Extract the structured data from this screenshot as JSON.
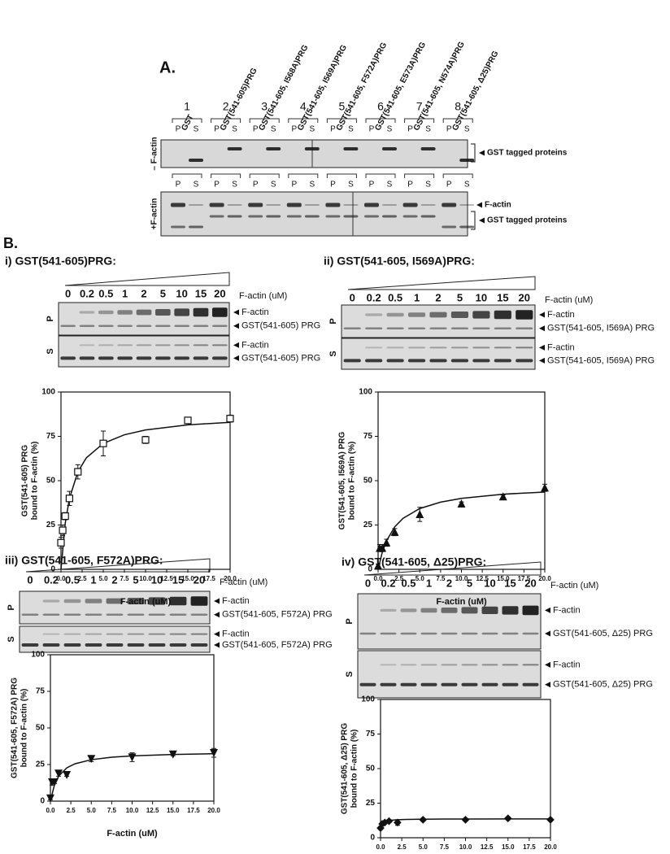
{
  "panel_a": {
    "label": "A.",
    "lanes": [
      {
        "number": "1",
        "name": "GST"
      },
      {
        "number": "2",
        "name": "GST(541-605)PRG"
      },
      {
        "number": "3",
        "name": "GST(541-605, I568A)PRG"
      },
      {
        "number": "4",
        "name": "GST(541-605, I569A)PRG"
      },
      {
        "number": "5",
        "name": "GST(541-605, F572A)PRG"
      },
      {
        "number": "6",
        "name": "GST(541-605, E573A)PRG"
      },
      {
        "number": "7",
        "name": "GST(541-605, N574A)PRG"
      },
      {
        "number": "8",
        "name": "GST(541-605, Δ25)PRG"
      }
    ],
    "lane_sub": [
      "P",
      "S"
    ],
    "rows": [
      {
        "condition": "– F-actin",
        "bands": [
          "GST tagged proteins"
        ]
      },
      {
        "condition": "+F-actin",
        "bands": [
          "F-actin",
          "GST tagged proteins"
        ]
      }
    ]
  },
  "panel_b": {
    "label": "B.",
    "subpanels": [
      {
        "title": "i) GST(541-605)PRG:",
        "concentrations": [
          "0",
          "0.2",
          "0.5",
          "1",
          "2",
          "5",
          "10",
          "15",
          "20"
        ],
        "conc_label": "F-actin (uM)",
        "rows": [
          {
            "label": "P",
            "bands": [
              "F-actin",
              "GST(541-605) PRG"
            ]
          },
          {
            "label": "S",
            "bands": [
              "F-actin",
              "GST(541-605) PRG"
            ]
          }
        ]
      },
      {
        "title": "ii) GST(541-605, I569A)PRG:",
        "concentrations": [
          "0",
          "0.2",
          "0.5",
          "1",
          "2",
          "5",
          "10",
          "15",
          "20"
        ],
        "conc_label": "F-actin (uM)",
        "rows": [
          {
            "label": "P",
            "bands": [
              "F-actin",
              "GST(541-605, I569A) PRG"
            ]
          },
          {
            "label": "S",
            "bands": [
              "F-actin",
              "GST(541-605, I569A) PRG"
            ]
          }
        ]
      },
      {
        "title": "iii) GST(541-605, F572A)PRG:",
        "concentrations": [
          "0",
          "0.2",
          "0.5",
          "1",
          "2",
          "5",
          "10",
          "15",
          "20"
        ],
        "conc_label": "F-actin (uM)",
        "rows": [
          {
            "label": "P",
            "bands": [
              "F-actin",
              "GST(541-605, F572A) PRG"
            ]
          },
          {
            "label": "S",
            "bands": [
              "F-actin",
              "GST(541-605, F572A) PRG"
            ]
          }
        ]
      },
      {
        "title": "iv) GST(541-605, Δ25)PRG:",
        "concentrations": [
          "0",
          "0.2",
          "0.5",
          "1",
          "2",
          "5",
          "10",
          "15",
          "20"
        ],
        "conc_label": "F-actin (uM)",
        "rows": [
          {
            "label": "P",
            "bands": [
              "F-actin",
              "GST(541-605, Δ25) PRG"
            ]
          },
          {
            "label": "S",
            "bands": [
              "F-actin",
              "GST(541-605, Δ25) PRG"
            ]
          }
        ]
      }
    ]
  },
  "chart_data": [
    {
      "type": "scatter",
      "xlabel": "F-actin (uM)",
      "ylabel": [
        "GST(541-605) PRG",
        "bound to F-actin (%)"
      ],
      "x": [
        0,
        0.2,
        0.5,
        1,
        2,
        5,
        10,
        15,
        20
      ],
      "values": [
        15,
        22,
        30,
        40,
        55,
        71,
        73,
        84,
        85
      ],
      "errors": [
        3,
        3,
        2,
        4,
        4,
        7,
        2,
        1,
        2
      ],
      "fit": {
        "x": [
          0,
          0.5,
          1,
          2,
          3,
          5,
          7.5,
          10,
          15,
          20
        ],
        "y": [
          0,
          25.9,
          40,
          55,
          62.9,
          71,
          75.9,
          78.6,
          81.5,
          82.9
        ]
      },
      "marker": "square",
      "filled": false,
      "color": "#111111",
      "xlim": [
        0,
        20
      ],
      "xticks": [
        {
          "value": 0,
          "label": "0.0"
        },
        {
          "value": 2.5,
          "label": "2.5"
        },
        {
          "value": 5,
          "label": "5.0"
        },
        {
          "value": 7.5,
          "label": "7.5"
        },
        {
          "value": 10,
          "label": "10.0"
        },
        {
          "value": 12.5,
          "label": "12.5"
        },
        {
          "value": 15,
          "label": "15.0"
        },
        {
          "value": 17.5,
          "label": "17.5"
        },
        {
          "value": 20,
          "label": "20.0"
        }
      ],
      "ylim": [
        0,
        100
      ],
      "yticks": [
        0,
        25,
        50,
        75,
        100
      ]
    },
    {
      "type": "scatter",
      "xlabel": "F-actin (uM)",
      "ylabel": [
        "GST(541-605, I569A) PRG",
        "bound to F-actin (%)"
      ],
      "x": [
        0,
        0.2,
        0.5,
        1,
        2,
        5,
        10,
        15,
        20
      ],
      "values": [
        2,
        12,
        12,
        15,
        21,
        31,
        37,
        41,
        46
      ],
      "errors": [
        1,
        2,
        2,
        2,
        2,
        4,
        1,
        1,
        2
      ],
      "fit": {
        "x": [
          0,
          0.5,
          1,
          2,
          3,
          5,
          7.5,
          10,
          15,
          20
        ],
        "y": [
          0,
          9.6,
          16,
          24,
          28.8,
          34.3,
          37.9,
          40,
          42.4,
          43.6
        ]
      },
      "marker": "triangle-up",
      "filled": true,
      "color": "#111111",
      "xlim": [
        0,
        20
      ],
      "xticks": [
        {
          "value": 0,
          "label": "0.0"
        },
        {
          "value": 2.5,
          "label": "2.5"
        },
        {
          "value": 5,
          "label": "5.0"
        },
        {
          "value": 7.5,
          "label": "7.5"
        },
        {
          "value": 10,
          "label": "10.0"
        },
        {
          "value": 12.5,
          "label": "12.5"
        },
        {
          "value": 15,
          "label": "15.0"
        },
        {
          "value": 17.5,
          "label": "17.5"
        },
        {
          "value": 20,
          "label": "20.0"
        }
      ],
      "ylim": [
        0,
        100
      ],
      "yticks": [
        0,
        25,
        50,
        75,
        100
      ]
    },
    {
      "type": "scatter",
      "xlabel": "F-actin (uM)",
      "ylabel": [
        "GST(541-605, F572A) PRG",
        "bound to F-actin (%)"
      ],
      "x": [
        0,
        0.2,
        0.5,
        1,
        2,
        5,
        10,
        15,
        20
      ],
      "values": [
        2,
        13,
        13,
        19,
        18,
        29,
        30,
        32,
        33
      ],
      "errors": [
        1,
        2,
        1,
        2,
        1,
        2,
        3,
        1,
        3
      ],
      "fit": {
        "x": [
          0,
          0.5,
          1,
          2,
          3,
          5,
          7.5,
          10,
          15,
          20
        ],
        "y": [
          0,
          11.3,
          17,
          22.7,
          25.5,
          28.3,
          30,
          30.9,
          31.9,
          32.4
        ]
      },
      "marker": "triangle-down",
      "filled": true,
      "color": "#111111",
      "xlim": [
        0,
        20
      ],
      "xticks": [
        {
          "value": 0,
          "label": "0.0"
        },
        {
          "value": 2.5,
          "label": "2.5"
        },
        {
          "value": 5,
          "label": "5.0"
        },
        {
          "value": 7.5,
          "label": "7.5"
        },
        {
          "value": 10,
          "label": "10.0"
        },
        {
          "value": 12.5,
          "label": "12.5"
        },
        {
          "value": 15,
          "label": "15.0"
        },
        {
          "value": 17.5,
          "label": "17.5"
        },
        {
          "value": 20,
          "label": "20.0"
        }
      ],
      "ylim": [
        0,
        100
      ],
      "yticks": [
        0,
        25,
        50,
        75,
        100
      ]
    },
    {
      "type": "scatter",
      "xlabel": "F-actin (uM)",
      "ylabel": [
        "GST(541-605, Δ25) PRG",
        "bound to F-actin (%)"
      ],
      "x": [
        0,
        0.2,
        0.5,
        1,
        2,
        5,
        10,
        15,
        20
      ],
      "values": [
        7,
        10,
        11,
        12,
        11,
        13,
        13,
        14,
        13
      ],
      "errors": [
        1,
        1,
        1,
        1,
        2,
        1,
        1,
        1,
        1
      ],
      "fit": {
        "x": [
          0,
          0.5,
          1,
          2,
          3,
          5,
          7.5,
          10,
          15,
          20
        ],
        "y": [
          7,
          11.5,
          12.5,
          13,
          13.2,
          13.4,
          13.5,
          13.5,
          13.6,
          13.6
        ]
      },
      "marker": "diamond",
      "filled": true,
      "color": "#111111",
      "xlim": [
        0,
        20
      ],
      "xticks": [
        {
          "value": 0,
          "label": "0.0"
        },
        {
          "value": 2.5,
          "label": "2.5"
        },
        {
          "value": 5,
          "label": "5.0"
        },
        {
          "value": 7.5,
          "label": "7.5"
        },
        {
          "value": 10,
          "label": "10.0"
        },
        {
          "value": 12.5,
          "label": "12.5"
        },
        {
          "value": 15,
          "label": "15.0"
        },
        {
          "value": 17.5,
          "label": "17.5"
        },
        {
          "value": 20,
          "label": "20.0"
        }
      ],
      "ylim": [
        0,
        100
      ],
      "yticks": [
        0,
        25,
        50,
        75,
        100
      ]
    }
  ]
}
